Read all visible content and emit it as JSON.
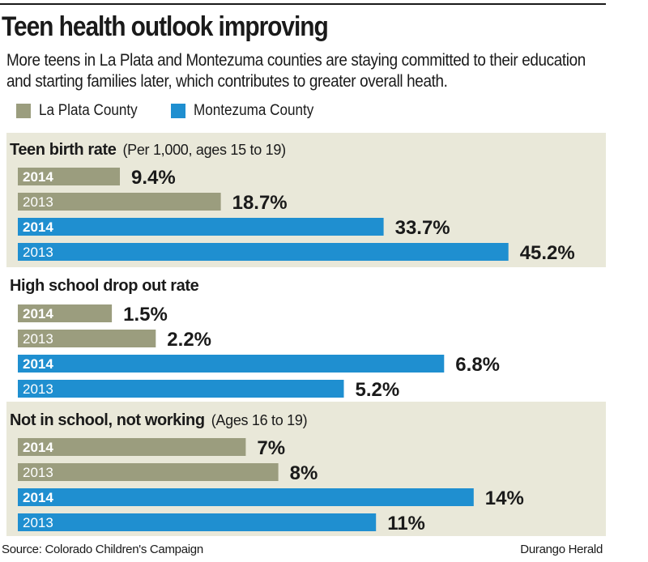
{
  "title": "Teen health outlook improving",
  "subtitle": "More teens in La Plata and Montezuma counties are staying committed to their education and starting families later, which contributes to greater overall heath.",
  "legend": [
    {
      "label": "La Plata County",
      "color": "#9b9d7e"
    },
    {
      "label": "Montezuma County",
      "color": "#1f8fd0"
    }
  ],
  "source": "Source: Colorado Children's Campaign",
  "credit": "Durango Herald",
  "chart_data": [
    {
      "type": "bar",
      "title": "Teen birth rate",
      "note": "(Per 1,000, ages 15 to 19)",
      "categories": [
        "2014",
        "2013"
      ],
      "series": [
        {
          "name": "La Plata County",
          "values": [
            9.4,
            18.7
          ],
          "labels": [
            "9.4%",
            "18.7%"
          ]
        },
        {
          "name": "Montezuma County",
          "values": [
            33.7,
            45.2
          ],
          "labels": [
            "33.7%",
            "45.2%"
          ]
        }
      ]
    },
    {
      "type": "bar",
      "title": "High school drop out rate",
      "note": "",
      "categories": [
        "2014",
        "2013"
      ],
      "series": [
        {
          "name": "La Plata County",
          "values": [
            1.5,
            2.2
          ],
          "labels": [
            "1.5%",
            "2.2%"
          ]
        },
        {
          "name": "Montezuma County",
          "values": [
            6.8,
            5.2
          ],
          "labels": [
            "6.8%",
            "5.2%"
          ]
        }
      ]
    },
    {
      "type": "bar",
      "title": "Not in school, not working",
      "note": "(Ages 16 to 19)",
      "categories": [
        "2014",
        "2013"
      ],
      "series": [
        {
          "name": "La Plata County",
          "values": [
            7,
            8
          ],
          "labels": [
            "7%",
            "8%"
          ]
        },
        {
          "name": "Montezuma County",
          "values": [
            14,
            11
          ],
          "labels": [
            "14%",
            "11%"
          ]
        }
      ]
    }
  ]
}
